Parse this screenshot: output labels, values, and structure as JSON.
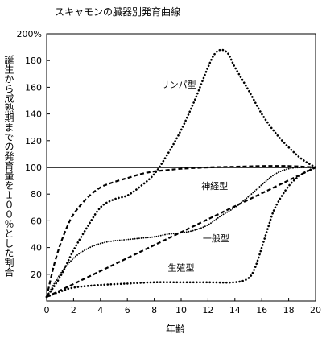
{
  "chart_data": {
    "type": "line",
    "title": "スキャモンの臓器別発育曲線",
    "xlabel": "年齢",
    "ylabel": "誕生から成熟期までの発育量を１００％とした割合",
    "xlim": [
      0,
      20
    ],
    "ylim": [
      0,
      200
    ],
    "x_ticks": [
      "0",
      "2",
      "4",
      "6",
      "8",
      "10",
      "12",
      "14",
      "16",
      "18",
      "20"
    ],
    "y_ticks": [
      "20",
      "40",
      "60",
      "80",
      "100",
      "120",
      "140",
      "160",
      "180",
      "200%"
    ],
    "y_tick_values": [
      20,
      40,
      60,
      80,
      100,
      120,
      140,
      160,
      180,
      200
    ],
    "reference_line": 100,
    "grid": false,
    "series": [
      {
        "name": "リンパ型",
        "style": "dotted",
        "x": [
          0,
          1,
          2,
          3,
          4,
          5,
          6,
          7,
          8,
          9,
          10,
          11,
          12,
          12.5,
          13,
          13.5,
          14,
          15,
          16,
          17,
          18,
          19,
          20
        ],
        "y": [
          3,
          18,
          38,
          55,
          70,
          76,
          79,
          86,
          95,
          110,
          128,
          150,
          175,
          185,
          188,
          185,
          175,
          158,
          140,
          126,
          115,
          106,
          100
        ]
      },
      {
        "name": "神経型",
        "style": "dashed",
        "x": [
          0,
          0.5,
          1,
          1.5,
          2,
          3,
          4,
          5,
          6,
          7,
          8,
          9,
          10,
          12,
          14,
          16,
          18,
          20
        ],
        "y": [
          3,
          25,
          42,
          55,
          65,
          77,
          85,
          89,
          92,
          95,
          97,
          98,
          99,
          100,
          100.5,
          101,
          101,
          100
        ]
      },
      {
        "name": "一般型",
        "style": "dotted-fine",
        "x": [
          0,
          1,
          2,
          3,
          4,
          5,
          6,
          7,
          8,
          9,
          10,
          11,
          12,
          13,
          14,
          15,
          16,
          17,
          18,
          19,
          20
        ],
        "y": [
          3,
          20,
          32,
          39,
          43,
          45,
          46,
          47,
          48,
          50,
          51,
          53,
          57,
          64,
          70,
          78,
          87,
          95,
          99,
          100,
          100
        ]
      },
      {
        "name": "",
        "style": "dashed",
        "x": [
          0,
          20
        ],
        "y": [
          3,
          100
        ]
      },
      {
        "name": "生殖型",
        "style": "dotted",
        "x": [
          0,
          1,
          2,
          4,
          6,
          8,
          10,
          12,
          14,
          15,
          15.5,
          16,
          16.5,
          17,
          18,
          19,
          20
        ],
        "y": [
          3,
          7,
          10,
          12,
          13,
          14,
          14,
          14,
          14,
          17,
          25,
          40,
          56,
          70,
          86,
          95,
          100
        ]
      }
    ],
    "annotations": [
      {
        "text": "リンパ型",
        "x": 9.8,
        "y": 162
      },
      {
        "text": "神経型",
        "x": 12.5,
        "y": 86
      },
      {
        "text": "一般型",
        "x": 12.6,
        "y": 47
      },
      {
        "text": "生殖型",
        "x": 10,
        "y": 25
      }
    ]
  }
}
